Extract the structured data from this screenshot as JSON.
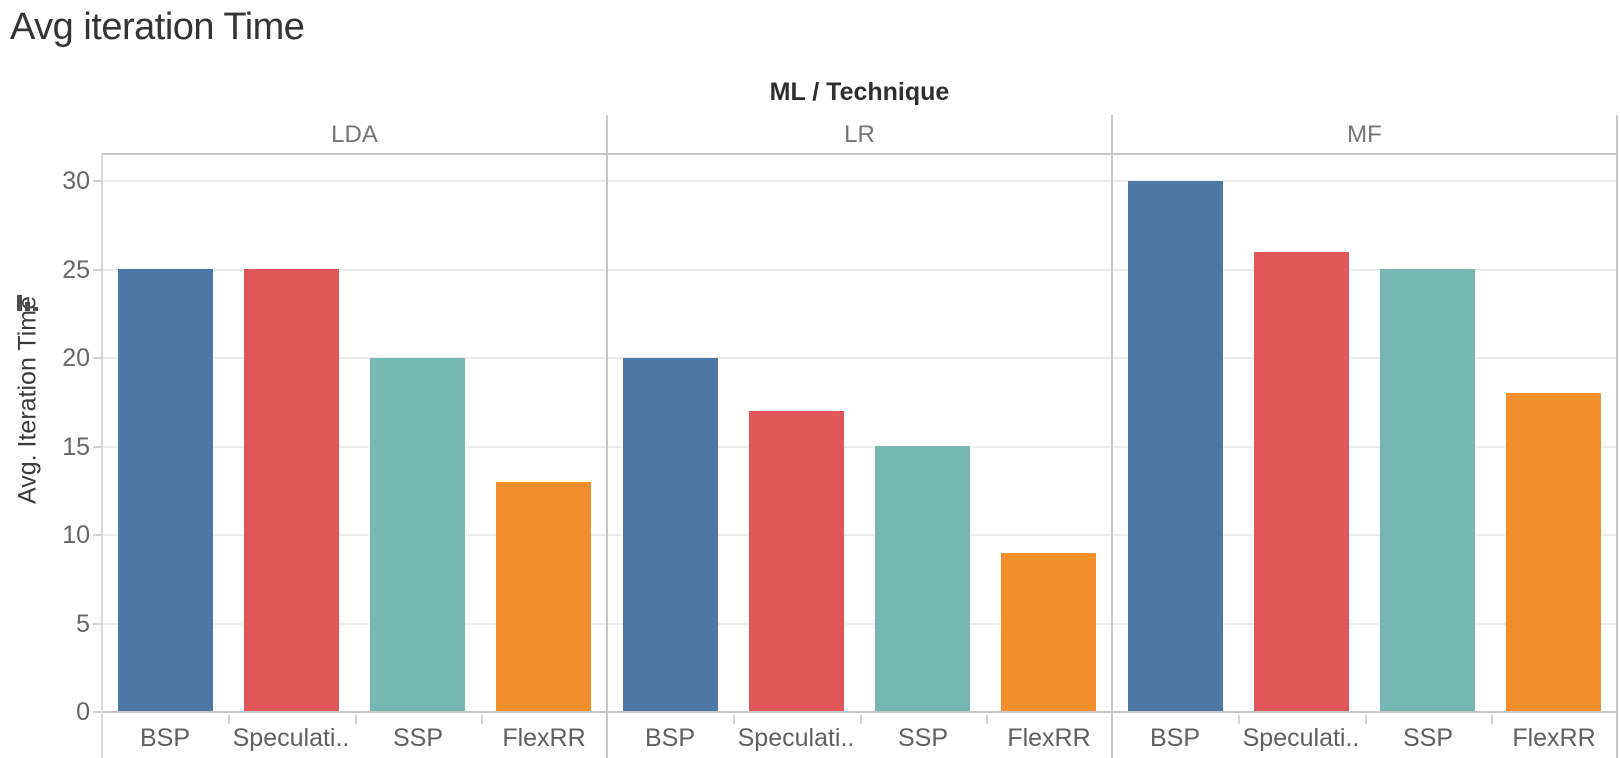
{
  "title": "Avg iteration Time",
  "column_field_header": "ML / Technique",
  "y_axis": {
    "title": "Avg. Iteration Time",
    "tick_labels": [
      "0",
      "5",
      "10",
      "15",
      "20",
      "25",
      "30"
    ]
  },
  "icons": {
    "sort_descending": "mini descending bar-chart sort glyph"
  },
  "chart_data": {
    "type": "bar",
    "title": "Avg iteration Time",
    "column_header": "ML / Technique",
    "ylabel": "Avg. Iteration Time",
    "ylim": [
      0,
      31.5
    ],
    "yticks": [
      0,
      5,
      10,
      15,
      20,
      25,
      30
    ],
    "grid": true,
    "legend_position": "none",
    "categories": [
      "BSP",
      "Speculati..",
      "SSP",
      "FlexRR"
    ],
    "bar_colors": [
      "#4e79a7",
      "#e15759",
      "#76b7b2",
      "#f28e2b"
    ],
    "panels": [
      {
        "label": "LDA",
        "values": [
          25,
          25,
          20,
          13
        ]
      },
      {
        "label": "LR",
        "values": [
          20,
          17,
          15,
          9
        ]
      },
      {
        "label": "MF",
        "values": [
          30,
          26,
          25,
          18
        ]
      }
    ]
  }
}
